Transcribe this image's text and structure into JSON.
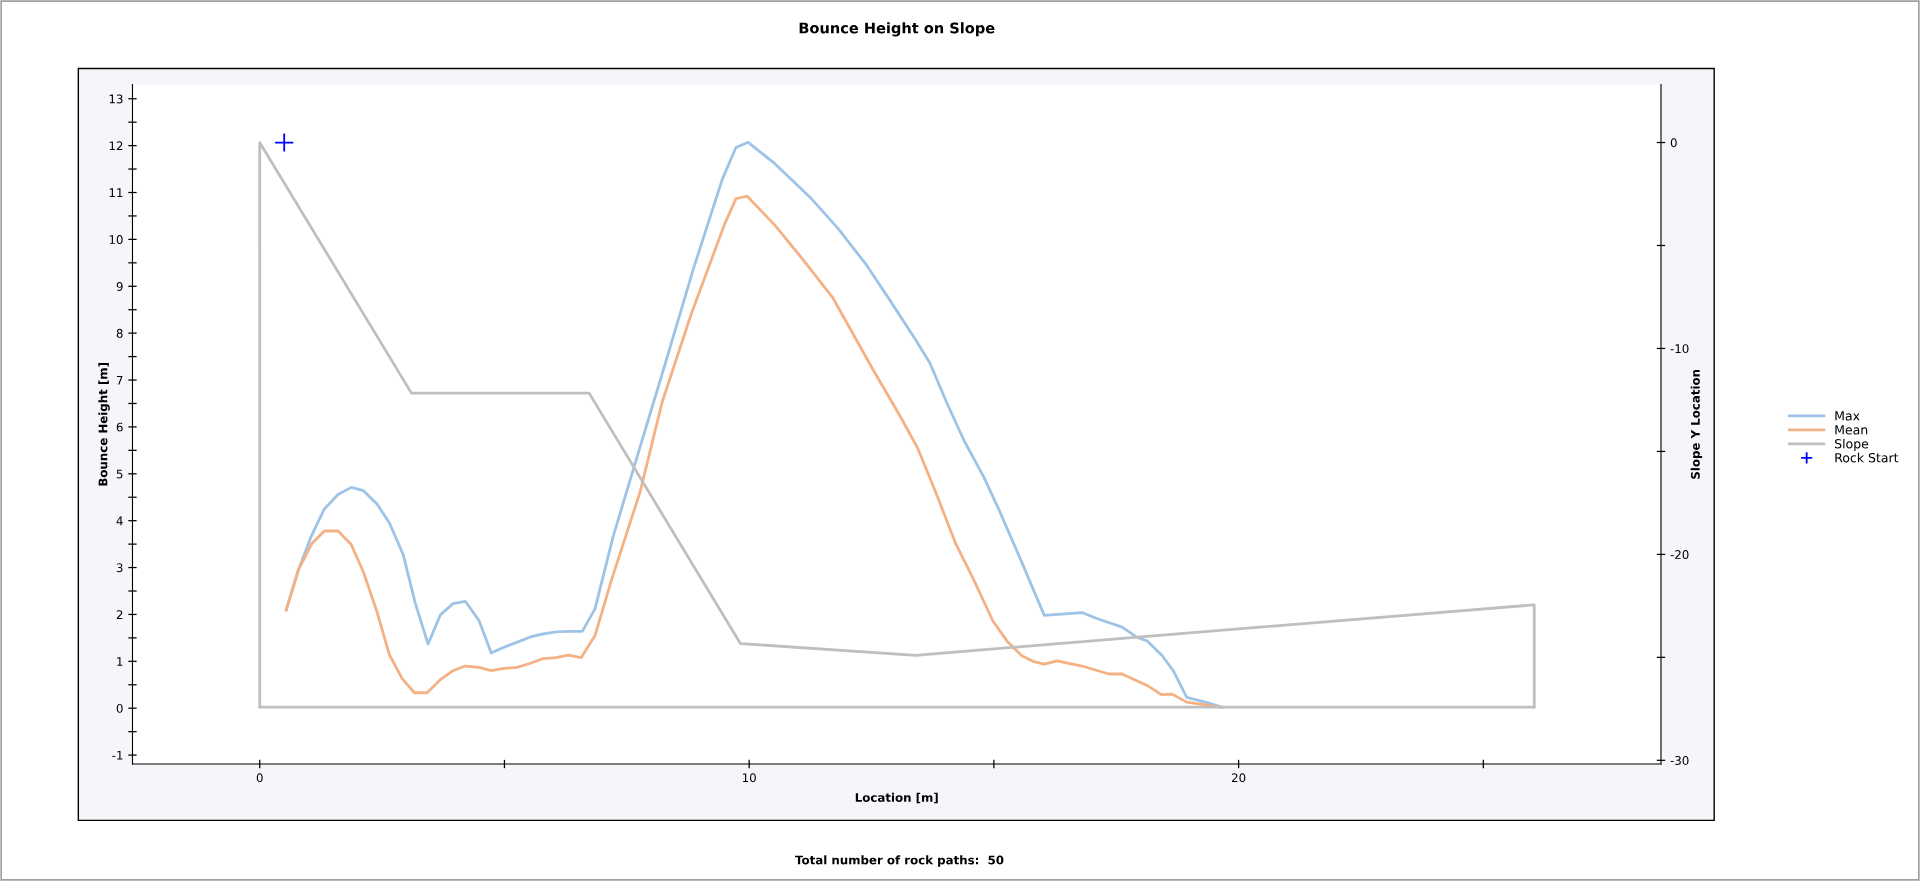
{
  "chart_data": {
    "type": "line",
    "title": "Bounce Height on Slope",
    "xlabel": "Location [m]",
    "ylabel": "Bounce Height [m]",
    "y2label": "Slope Y Location",
    "annotations": [
      "Total number of rock paths:  50"
    ],
    "series": [
      {
        "name": "Max",
        "color": "#9dc3e6",
        "x": [
          0.54,
          0.79,
          1.05,
          1.32,
          1.6,
          1.87,
          2.12,
          2.4,
          2.65,
          2.93,
          3.18,
          3.44,
          3.69,
          3.95,
          4.2,
          4.48,
          4.73,
          4.99,
          5.26,
          5.53,
          5.77,
          6.05,
          6.32,
          6.59,
          6.85,
          7.22,
          7.77,
          8.32,
          8.86,
          9.45,
          9.73,
          9.98,
          10.52,
          11.28,
          11.81,
          12.4,
          12.87,
          13.4,
          13.69,
          14.04,
          14.39,
          14.8,
          15.1,
          15.51,
          16.03,
          16.8,
          17.09,
          17.62,
          17.91,
          18.14,
          18.44,
          18.67,
          18.94,
          19.32,
          19.67
        ],
        "values": [
          2.09,
          2.95,
          3.66,
          4.25,
          4.56,
          4.71,
          4.64,
          4.35,
          3.95,
          3.28,
          2.23,
          1.37,
          1.99,
          2.23,
          2.28,
          1.87,
          1.18,
          1.3,
          1.41,
          1.52,
          1.58,
          1.63,
          1.64,
          1.64,
          2.12,
          3.66,
          5.57,
          7.47,
          9.37,
          11.28,
          11.96,
          12.07,
          11.62,
          10.86,
          10.24,
          9.45,
          8.71,
          7.86,
          7.37,
          6.51,
          5.71,
          4.92,
          4.24,
          3.26,
          1.98,
          2.04,
          1.92,
          1.73,
          1.52,
          1.43,
          1.12,
          0.79,
          0.23,
          0.13,
          0.02
        ]
      },
      {
        "name": "Mean",
        "color": "#f4b183",
        "x": [
          0.54,
          0.79,
          1.07,
          1.32,
          1.6,
          1.87,
          2.12,
          2.4,
          2.65,
          2.91,
          3.16,
          3.42,
          3.69,
          3.95,
          4.2,
          4.48,
          4.73,
          4.99,
          5.26,
          5.53,
          5.79,
          6.05,
          6.3,
          6.57,
          6.85,
          7.18,
          7.77,
          8.22,
          8.82,
          9.5,
          9.73,
          9.96,
          10.52,
          11.05,
          11.7,
          12.52,
          13.1,
          13.45,
          13.81,
          14.22,
          14.57,
          14.98,
          15.27,
          15.57,
          15.8,
          16.03,
          16.29,
          16.8,
          17.35,
          17.62,
          18.14,
          18.42,
          18.64,
          18.94,
          19.67
        ],
        "values": [
          2.09,
          2.95,
          3.52,
          3.78,
          3.78,
          3.49,
          2.9,
          2.04,
          1.14,
          0.63,
          0.33,
          0.33,
          0.61,
          0.8,
          0.9,
          0.87,
          0.8,
          0.85,
          0.87,
          0.96,
          1.06,
          1.08,
          1.13,
          1.08,
          1.55,
          2.71,
          4.61,
          6.52,
          8.42,
          10.33,
          10.87,
          10.92,
          10.31,
          9.63,
          8.77,
          7.24,
          6.2,
          5.53,
          4.61,
          3.51,
          2.78,
          1.86,
          1.43,
          1.12,
          1.0,
          0.94,
          1.01,
          0.9,
          0.73,
          0.73,
          0.48,
          0.29,
          0.3,
          0.13,
          0.02
        ]
      },
      {
        "name": "Slope",
        "color": "#bfbfbf",
        "axis": "y2",
        "x": [
          0,
          0,
          3.1,
          6.73,
          9.82,
          13.4,
          26.04,
          26.04
        ],
        "values": [
          -27.42,
          0,
          -12.17,
          -12.17,
          -24.33,
          -24.9,
          -22.45,
          -27.42
        ]
      },
      {
        "color": "#bfbfbf",
        "axis": "y2",
        "x": [
          0,
          26.04
        ],
        "values": [
          -27.42,
          -27.42
        ]
      },
      {
        "name": "Rock Start",
        "type": "scatter",
        "color": "#0000ff",
        "axis": "y2",
        "marker": "cross",
        "x": [
          0.5
        ],
        "values": [
          0
        ]
      }
    ],
    "xlim": [
      -2.6,
      28.63
    ],
    "xticks": [
      0,
      {
        "value": 5,
        "label": null
      },
      10,
      {
        "value": 15,
        "label": null
      },
      20,
      {
        "value": 25,
        "label": null
      }
    ],
    "ylim": [
      -1.19,
      13.3
    ],
    "yticks": [
      -1,
      {
        "value": -0.5,
        "label": null
      },
      0,
      {
        "value": 0.5,
        "label": null
      },
      1,
      {
        "value": 1.5,
        "label": null
      },
      2,
      {
        "value": 2.5,
        "label": null
      },
      3,
      {
        "value": 3.5,
        "label": null
      },
      4,
      {
        "value": 4.5,
        "label": null
      },
      5,
      {
        "value": 5.5,
        "label": null
      },
      6,
      {
        "value": 6.5,
        "label": null
      },
      7,
      {
        "value": 7.5,
        "label": null
      },
      8,
      {
        "value": 8.5,
        "label": null
      },
      9,
      {
        "value": 9.5,
        "label": null
      },
      10,
      {
        "value": 10.5,
        "label": null
      },
      11,
      {
        "value": 11.5,
        "label": null
      },
      12,
      {
        "value": 12.5,
        "label": null
      },
      13
    ],
    "y2lim": [
      -30.18,
      2.81
    ],
    "y2ticks": [
      0,
      {
        "value": -5,
        "label": null
      },
      -10,
      {
        "value": -15,
        "label": null
      },
      -20,
      {
        "value": -25,
        "label": null
      },
      -30
    ],
    "grid": false,
    "legend": "right",
    "line_style": "solid"
  }
}
